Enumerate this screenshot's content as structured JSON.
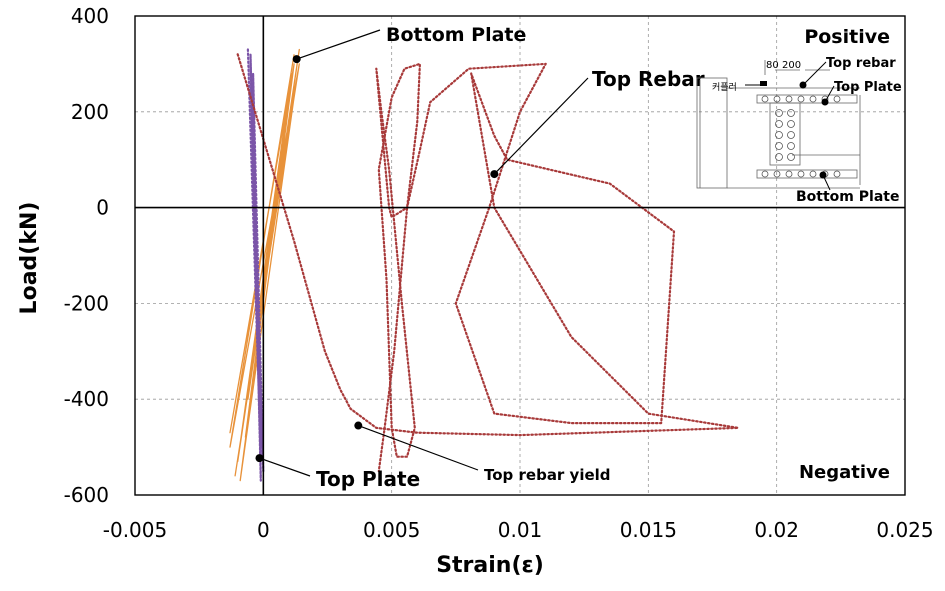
{
  "chart_data": {
    "type": "line",
    "xlabel": "Strain(ε)",
    "ylabel": "Load(kN)",
    "xlim": [
      -0.005,
      0.025
    ],
    "ylim": [
      -600,
      400
    ],
    "x_ticks": [
      "-0.005",
      "0",
      "0.005",
      "0.01",
      "0.015",
      "0.02",
      "0.025"
    ],
    "y_ticks": [
      "400",
      "200",
      "0",
      "-200",
      "-400",
      "-600"
    ],
    "x_tick_values": [
      -0.005,
      0,
      0.005,
      0.01,
      0.015,
      0.02,
      0.025
    ],
    "y_tick_values": [
      400,
      200,
      0,
      -200,
      -400,
      -600
    ],
    "grid": true,
    "region_labels": {
      "positive": "Positive",
      "negative": "Negative"
    },
    "annotations": [
      {
        "text": "Bottom Plate",
        "x": 0.0013,
        "y": 310
      },
      {
        "text": "Top Rebar",
        "x": 0.009,
        "y": 70
      },
      {
        "text": "Top Plate",
        "x": -0.00015,
        "y": -523
      },
      {
        "text": "Top rebar  yield",
        "x": 0.0037,
        "y": -455
      }
    ],
    "series": [
      {
        "color": "#E8923A",
        "style": "solid",
        "x": [
          0.0012,
          -0.0013,
          0.0014,
          -0.0011,
          0.0013,
          -0.0009,
          0.0012,
          -0.0013,
          0.001,
          -0.0006,
          0.0014,
          -0.001,
          0.0011,
          -0.0007
        ],
        "y": [
          320,
          -500,
          300,
          -560,
          270,
          -570,
          300,
          -470,
          240,
          -400,
          330,
          -530,
          280,
          -480
        ]
      },
      {
        "color": "#7B55A8",
        "style": "dotted",
        "x": [
          -0.0006,
          -0.0001,
          -0.0005,
          -0.0001,
          -0.0004,
          0.0,
          -0.0005,
          -0.0001,
          -0.0004,
          -0.0001
        ],
        "y": [
          330,
          -520,
          320,
          -570,
          280,
          -550,
          300,
          -560,
          260,
          -500
        ]
      },
      {
        "color": "#A83A3A",
        "style": "dotted",
        "x": [
          -0.001,
          0.0012,
          0.0024,
          0.003,
          0.0034,
          0.0044,
          0.006,
          0.01,
          0.0185,
          0.015,
          0.012,
          0.009,
          0.0081,
          0.009,
          0.0095,
          0.0135,
          0.016,
          0.0155,
          0.012,
          0.009,
          0.0075,
          0.0088,
          0.01,
          0.011,
          0.008,
          0.0065,
          0.0061,
          0.0056,
          0.005,
          0.0049,
          0.0044,
          0.0046,
          0.0049,
          0.0054,
          0.0059,
          0.0056,
          0.0052,
          0.005,
          0.0048,
          0.0045,
          0.005,
          0.0055,
          0.0061,
          0.006,
          0.0056,
          0.0051,
          0.0047,
          0.0045
        ],
        "y": [
          320,
          -70,
          -300,
          -380,
          -420,
          -460,
          -470,
          -475,
          -460,
          -430,
          -270,
          0,
          280,
          150,
          100,
          50,
          -50,
          -450,
          -450,
          -430,
          -200,
          0,
          200,
          300,
          290,
          220,
          120,
          0,
          -20,
          0,
          290,
          200,
          80,
          -200,
          -460,
          -520,
          -520,
          -460,
          -150,
          80,
          230,
          290,
          300,
          180,
          0,
          -300,
          -470,
          -550
        ]
      }
    ],
    "inset": {
      "title": "Positive",
      "labels": [
        "80",
        "200",
        "Top rebar",
        "Top Plate",
        "Bottom Plate",
        "커플러"
      ]
    }
  }
}
